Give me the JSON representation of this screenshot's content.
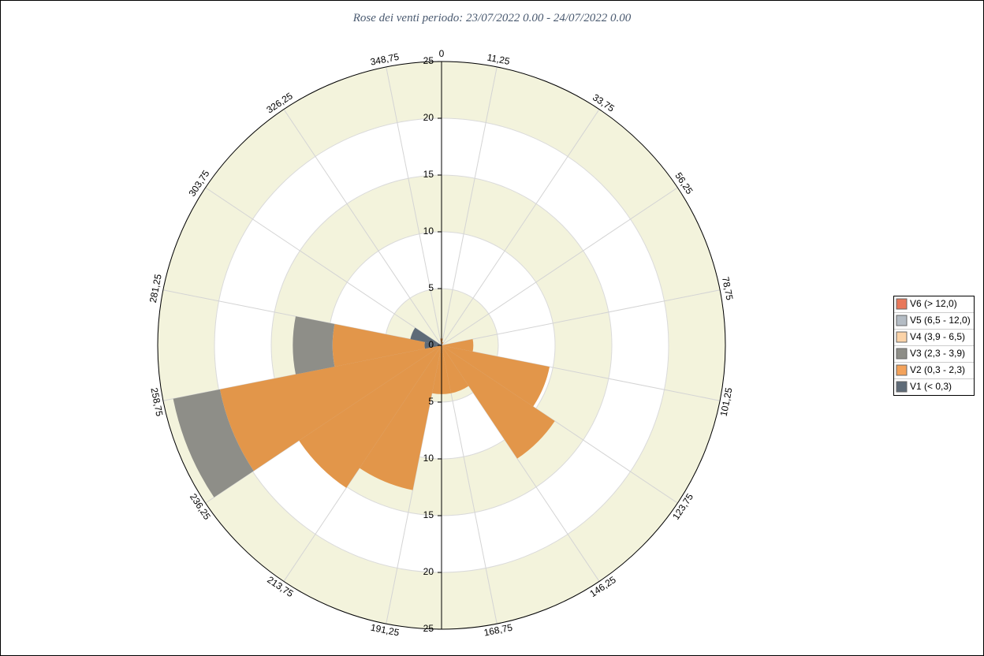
{
  "chart_data": {
    "type": "rose",
    "title": "Rose dei venti periodo: 23/07/2022 0.00 - 24/07/2022 0.00",
    "x": [
      0,
      22.5,
      45,
      67.5,
      90,
      112.5,
      135,
      157.5,
      180,
      202.5,
      225,
      247.5,
      270,
      292.5,
      315,
      337.5
    ],
    "series": [
      {
        "name": "V1 (< 0,3)",
        "color": "#5e6b78",
        "values": [
          0,
          0,
          0,
          0,
          0,
          0,
          0,
          0,
          0,
          0,
          0,
          0,
          1.5,
          2.8,
          0,
          0
        ]
      },
      {
        "name": "V2 (0,3 - 2,3)",
        "color": "#e2964a",
        "legend_color": "#f3a25a",
        "values": [
          0.6,
          0.3,
          0,
          0,
          2.8,
          9.7,
          12,
          4.3,
          4.3,
          13,
          15.1,
          19.9,
          8.1,
          0,
          0,
          0
        ]
      },
      {
        "name": "V3 (2,3 - 3,9)",
        "color": "#8e8e88",
        "values": [
          0,
          0,
          0,
          0,
          0,
          0,
          0,
          0,
          0,
          0,
          0,
          4.2,
          3.5,
          0,
          0,
          0
        ]
      },
      {
        "name": "V4 (3,9 - 6,5)",
        "color": "#fbd3a8",
        "values": [
          0,
          0,
          0,
          0,
          0,
          0,
          0,
          0,
          0,
          0,
          0,
          0,
          0,
          0,
          0,
          0
        ]
      },
      {
        "name": "V5 (6,5 - 12,0)",
        "color": "#b4bcc4",
        "values": [
          0,
          0,
          0,
          0,
          0,
          0,
          0,
          0,
          0,
          0,
          0,
          0,
          0,
          0,
          0,
          0
        ]
      },
      {
        "name": "V6 (> 12,0)",
        "color": "#e8785a",
        "values": [
          0,
          0,
          0,
          0,
          0,
          0,
          0,
          0,
          0,
          0,
          0,
          0,
          0,
          0,
          0,
          0
        ]
      }
    ],
    "rlim": [
      0,
      25
    ],
    "rticks": [
      0,
      5,
      10,
      15,
      20,
      25
    ],
    "angleticks": [
      0,
      {
        "value": 11.25,
        "label": "11,25"
      },
      {
        "value": 33.75,
        "label": "33,75"
      },
      {
        "value": 56.25,
        "label": "56,25"
      },
      {
        "value": 78.75,
        "label": "78,75"
      },
      {
        "value": 101.25,
        "label": "101,25"
      },
      {
        "value": 123.75,
        "label": "123,75"
      },
      {
        "value": 146.25,
        "label": "146,25"
      },
      {
        "value": 168.75,
        "label": "168,75"
      },
      {
        "value": 191.25,
        "label": "191,25"
      },
      {
        "value": 213.75,
        "label": "213,75"
      },
      {
        "value": 236.25,
        "label": "236,25"
      },
      {
        "value": 258.75,
        "label": "258,75"
      },
      {
        "value": 281.25,
        "label": "281,25"
      },
      {
        "value": 303.75,
        "label": "303,75"
      },
      {
        "value": 326.25,
        "label": "326,25"
      },
      {
        "value": 348.75,
        "label": "348,75"
      }
    ],
    "sector_width": 22.5,
    "band_color": "#f3f3dc",
    "legend_position": "right"
  }
}
